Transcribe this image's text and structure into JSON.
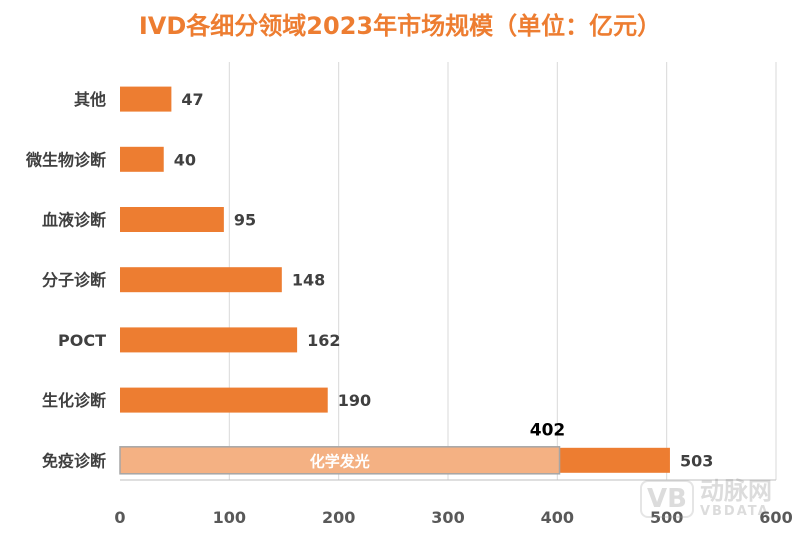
{
  "chart_data": {
    "type": "bar",
    "orientation": "horizontal",
    "title": "IVD各细分领域2023年市场规模（单位：亿元）",
    "categories": [
      "其他",
      "微生物诊断",
      "血液诊断",
      "分子诊断",
      "POCT",
      "生化诊断",
      "免疫诊断"
    ],
    "values": [
      47,
      40,
      95,
      148,
      162,
      190,
      503
    ],
    "sub_segment": {
      "category": "免疫诊断",
      "label": "化学发光",
      "value": 402
    },
    "xlim": [
      0,
      600
    ],
    "xticks": [
      0,
      100,
      200,
      300,
      400,
      500,
      600
    ],
    "grid": "vertical",
    "legend": "none",
    "colors": {
      "bar": "#ED7D31",
      "sub_segment": "#F4B183",
      "title": "#ED7D31"
    }
  },
  "watermark": {
    "logo": "VB",
    "name": "动脉网",
    "sub": "VBDATA"
  }
}
